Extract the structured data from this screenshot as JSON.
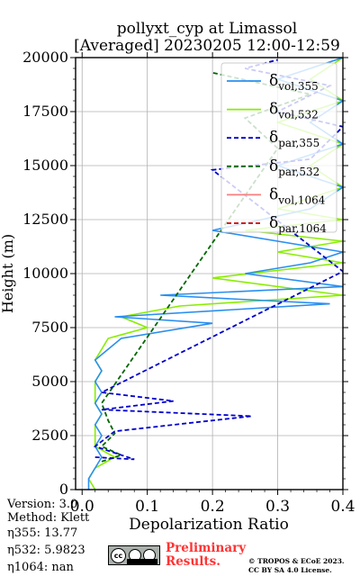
{
  "chart_data": {
    "type": "line",
    "title": "pollyxt_cyp at Limassol",
    "subtitle": "[Averaged] 20230205 12:00-12:59",
    "xlabel": "Depolarization Ratio",
    "ylabel": "Height (m)",
    "xlim": [
      -0.01,
      0.4
    ],
    "ylim": [
      0,
      20000
    ],
    "xticks": [
      0.0,
      0.1,
      0.2,
      0.3,
      0.4
    ],
    "xtick_labels": [
      "0.0",
      "0.1",
      "0.2",
      "0.3",
      "0.4"
    ],
    "yticks": [
      0,
      2500,
      5000,
      7500,
      10000,
      12500,
      15000,
      17500,
      20000
    ],
    "ytick_labels": [
      "0",
      "2500",
      "5000",
      "7500",
      "10000",
      "12500",
      "15000",
      "17500",
      "20000"
    ],
    "grid": true,
    "legend_position": "top-right",
    "series": [
      {
        "name": "δ_vol,355",
        "legend_label": "δ",
        "legend_sub": "vol,355",
        "color": "#2a8ff0",
        "style": "solid",
        "points": [
          [
            0.01,
            0
          ],
          [
            0.01,
            500
          ],
          [
            0.02,
            1000
          ],
          [
            0.03,
            1500
          ],
          [
            0.02,
            2000
          ],
          [
            0.03,
            2500
          ],
          [
            0.02,
            3000
          ],
          [
            0.03,
            3500
          ],
          [
            0.02,
            4000
          ],
          [
            0.03,
            4500
          ],
          [
            0.02,
            5000
          ],
          [
            0.03,
            5500
          ],
          [
            0.02,
            6000
          ],
          [
            0.04,
            6500
          ],
          [
            0.06,
            7000
          ],
          [
            0.2,
            7700
          ],
          [
            0.05,
            8000
          ],
          [
            0.38,
            8600
          ],
          [
            0.12,
            9000
          ],
          [
            0.4,
            9400
          ],
          [
            0.25,
            10000
          ],
          [
            0.35,
            10500
          ],
          [
            0.4,
            11000
          ],
          [
            0.2,
            12000
          ],
          [
            0.35,
            13000
          ],
          [
            0.4,
            14000
          ],
          [
            0.3,
            15000
          ],
          [
            0.4,
            16000
          ],
          [
            0.35,
            17000
          ],
          [
            0.4,
            18000
          ],
          [
            0.3,
            19000
          ],
          [
            0.4,
            20000
          ]
        ]
      },
      {
        "name": "δ_vol,532",
        "legend_label": "δ",
        "legend_sub": "vol,532",
        "color": "#88ee00",
        "style": "solid",
        "points": [
          [
            0.02,
            0
          ],
          [
            0.01,
            500
          ],
          [
            0.02,
            1000
          ],
          [
            0.05,
            1500
          ],
          [
            0.02,
            2000
          ],
          [
            0.02,
            2500
          ],
          [
            0.02,
            3000
          ],
          [
            0.03,
            3500
          ],
          [
            0.02,
            4000
          ],
          [
            0.02,
            4500
          ],
          [
            0.02,
            5000
          ],
          [
            0.03,
            5500
          ],
          [
            0.02,
            6000
          ],
          [
            0.03,
            6500
          ],
          [
            0.04,
            7000
          ],
          [
            0.1,
            7500
          ],
          [
            0.06,
            8000
          ],
          [
            0.15,
            8500
          ],
          [
            0.4,
            9000
          ],
          [
            0.2,
            9800
          ],
          [
            0.4,
            10500
          ],
          [
            0.3,
            11000
          ],
          [
            0.4,
            11500
          ],
          [
            0.25,
            12000
          ],
          [
            0.4,
            12500
          ],
          [
            0.3,
            13000
          ],
          [
            0.4,
            14000
          ],
          [
            0.35,
            15000
          ],
          [
            0.4,
            16000
          ],
          [
            0.3,
            17000
          ],
          [
            0.4,
            18000
          ],
          [
            0.35,
            19000
          ],
          [
            0.4,
            20000
          ]
        ]
      },
      {
        "name": "δ_par,355",
        "legend_label": "δ",
        "legend_sub": "par,355",
        "color": "#0000cc",
        "style": "dashed",
        "points": [
          [
            0.02,
            1500
          ],
          [
            0.08,
            1400
          ],
          [
            0.02,
            2000
          ],
          [
            0.05,
            2700
          ],
          [
            0.26,
            3400
          ],
          [
            0.03,
            3700
          ],
          [
            0.14,
            4100
          ],
          [
            0.03,
            4500
          ],
          [
            0.4,
            10100
          ],
          [
            0.2,
            14800
          ],
          [
            0.35,
            15300
          ],
          [
            0.4,
            16800
          ],
          [
            0.3,
            17500
          ],
          [
            0.38,
            18700
          ],
          [
            0.25,
            19500
          ],
          [
            0.3,
            19900
          ]
        ]
      },
      {
        "name": "δ_par,532",
        "legend_label": "δ",
        "legend_sub": "par,532",
        "color": "#006600",
        "style": "dashed",
        "points": [
          [
            0.03,
            1300
          ],
          [
            0.06,
            1600
          ],
          [
            0.03,
            2000
          ],
          [
            0.05,
            2600
          ],
          [
            0.04,
            3200
          ],
          [
            0.03,
            4000
          ],
          [
            0.3,
            15800
          ],
          [
            0.25,
            17200
          ],
          [
            0.35,
            18300
          ],
          [
            0.2,
            19300
          ]
        ]
      },
      {
        "name": "δ_vol,1064",
        "legend_label": "δ",
        "legend_sub": "vol,1064",
        "color": "#f87f7f",
        "style": "solid",
        "points": []
      },
      {
        "name": "δ_par,1064",
        "legend_label": "δ",
        "legend_sub": "par,1064",
        "color": "#cc0000",
        "style": "dashed",
        "points": []
      }
    ]
  },
  "meta": {
    "version": "Version: 3.0",
    "method": "Method: Klett",
    "eta355": "η355:  13.77",
    "eta532": "η532: 5.9823",
    "eta1064": "η1064:    nan"
  },
  "footer": {
    "prelim_line1": "Preliminary",
    "prelim_line2": "Results.",
    "copyright_line1": "© TROPOS & ECoE 2023.",
    "copyright_line2": "CC BY SA 4.0 License."
  }
}
